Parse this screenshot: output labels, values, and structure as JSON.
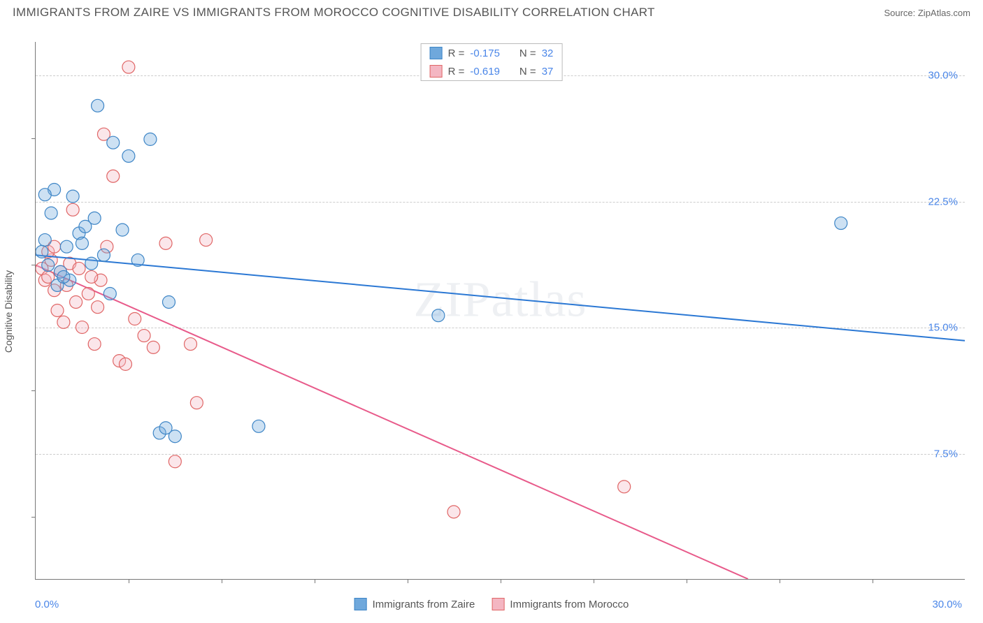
{
  "header": {
    "title": "IMMIGRANTS FROM ZAIRE VS IMMIGRANTS FROM MOROCCO COGNITIVE DISABILITY CORRELATION CHART",
    "source_prefix": "Source: ",
    "source_name": "ZipAtlas.com"
  },
  "chart": {
    "type": "scatter",
    "y_axis_label": "Cognitive Disability",
    "xlim": [
      0,
      30
    ],
    "ylim": [
      0,
      32
    ],
    "x_tick_labels": {
      "start": "0.0%",
      "end": "30.0%"
    },
    "y_ticks": [
      {
        "value": 7.5,
        "label": "7.5%"
      },
      {
        "value": 15.0,
        "label": "15.0%"
      },
      {
        "value": 22.5,
        "label": "22.5%"
      },
      {
        "value": 30.0,
        "label": "30.0%"
      }
    ],
    "x_minor_ticks": [
      3,
      6,
      9,
      12,
      15,
      18,
      21,
      24,
      27
    ],
    "y_minor_ticks": [
      3.75,
      11.25,
      18.75,
      26.25
    ],
    "grid_color": "#cccccc",
    "axis_color": "#777777",
    "background_color": "#ffffff",
    "marker_radius": 9,
    "marker_fill_opacity": 0.35,
    "marker_stroke_width": 1.2,
    "line_width": 2,
    "watermark": "ZIPatlas"
  },
  "series": {
    "zaire": {
      "label": "Immigrants from Zaire",
      "color": "#6fa8dc",
      "stroke": "#3d85c6",
      "line_color": "#2b78d4",
      "R_label": "R = ",
      "R": "-0.175",
      "N_label": "N = ",
      "N": "32",
      "regression": {
        "x1": 0,
        "y1": 19.3,
        "x2": 30,
        "y2": 14.2
      },
      "points": [
        [
          0.2,
          19.5
        ],
        [
          0.3,
          20.2
        ],
        [
          0.4,
          18.7
        ],
        [
          0.5,
          21.8
        ],
        [
          0.6,
          23.2
        ],
        [
          0.8,
          18.3
        ],
        [
          1.0,
          19.8
        ],
        [
          1.2,
          22.8
        ],
        [
          1.4,
          20.6
        ],
        [
          1.6,
          21.0
        ],
        [
          1.8,
          18.8
        ],
        [
          2.0,
          28.2
        ],
        [
          2.2,
          19.3
        ],
        [
          2.4,
          17.0
        ],
        [
          2.5,
          26.0
        ],
        [
          2.8,
          20.8
        ],
        [
          3.0,
          25.2
        ],
        [
          3.3,
          19.0
        ],
        [
          3.7,
          26.2
        ],
        [
          4.3,
          16.5
        ],
        [
          4.0,
          8.7
        ],
        [
          4.2,
          9.0
        ],
        [
          4.5,
          8.5
        ],
        [
          7.2,
          9.1
        ],
        [
          13.0,
          15.7
        ],
        [
          0.7,
          17.5
        ],
        [
          1.1,
          17.8
        ],
        [
          1.5,
          20.0
        ],
        [
          1.9,
          21.5
        ],
        [
          0.3,
          22.9
        ],
        [
          0.9,
          18.0
        ],
        [
          26.0,
          21.2
        ]
      ]
    },
    "morocco": {
      "label": "Immigrants from Morocco",
      "color": "#f4b6c2",
      "stroke": "#e06666",
      "line_color": "#e85a8a",
      "R_label": "R = ",
      "R": "-0.619",
      "N_label": "N = ",
      "N": "37",
      "regression": {
        "x1": 0,
        "y1": 18.7,
        "x2": 23,
        "y2": 0
      },
      "points": [
        [
          0.2,
          18.5
        ],
        [
          0.3,
          17.8
        ],
        [
          0.4,
          18.0
        ],
        [
          0.5,
          19.0
        ],
        [
          0.6,
          17.2
        ],
        [
          0.7,
          16.0
        ],
        [
          0.8,
          18.3
        ],
        [
          0.9,
          15.3
        ],
        [
          1.0,
          17.5
        ],
        [
          1.1,
          18.8
        ],
        [
          1.3,
          16.5
        ],
        [
          1.5,
          15.0
        ],
        [
          1.7,
          17.0
        ],
        [
          1.9,
          14.0
        ],
        [
          2.0,
          16.2
        ],
        [
          2.3,
          19.8
        ],
        [
          2.5,
          24.0
        ],
        [
          2.7,
          13.0
        ],
        [
          2.9,
          12.8
        ],
        [
          3.0,
          30.5
        ],
        [
          3.2,
          15.5
        ],
        [
          2.2,
          26.5
        ],
        [
          3.5,
          14.5
        ],
        [
          4.2,
          20.0
        ],
        [
          4.5,
          7.0
        ],
        [
          5.0,
          14.0
        ],
        [
          5.2,
          10.5
        ],
        [
          5.5,
          20.2
        ],
        [
          3.8,
          13.8
        ],
        [
          1.2,
          22.0
        ],
        [
          0.4,
          19.5
        ],
        [
          0.6,
          19.8
        ],
        [
          1.4,
          18.5
        ],
        [
          2.1,
          17.8
        ],
        [
          13.5,
          4.0
        ],
        [
          19.0,
          5.5
        ],
        [
          1.8,
          18.0
        ]
      ]
    }
  }
}
